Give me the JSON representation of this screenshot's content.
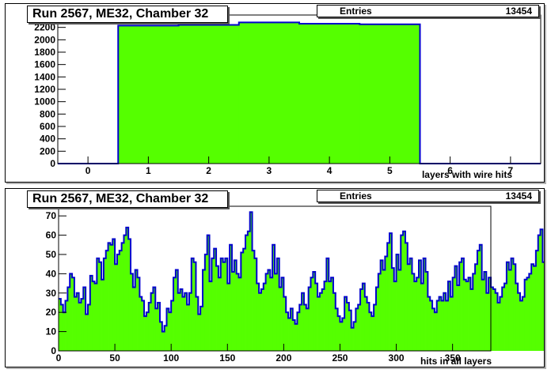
{
  "chart_data": [
    {
      "type": "bar",
      "title": "Run 2567, ME32, Chamber 32",
      "stats_label": "Entries",
      "stats_value": "13454",
      "xlabel": "layers with wire hits",
      "ylabel": "",
      "xlim": [
        -0.5,
        7.5
      ],
      "ylim": [
        0,
        2400
      ],
      "xticks": [
        0,
        1,
        2,
        3,
        4,
        5,
        6,
        7
      ],
      "yticks": [
        0,
        200,
        400,
        600,
        800,
        1000,
        1200,
        1400,
        1600,
        1800,
        2000,
        2200
      ],
      "categories": [
        0,
        1,
        2,
        3,
        4,
        5,
        6,
        7
      ],
      "values": [
        0,
        2230,
        2240,
        2280,
        2260,
        2250,
        0,
        0
      ],
      "fill_color": "#55ff00",
      "line_color": "#0000cc"
    },
    {
      "type": "bar",
      "title": "Run 2567, ME32, Chamber 32",
      "stats_label": "Entries",
      "stats_value": "13454",
      "xlabel": "hits in all layers",
      "ylabel": "",
      "xlim": [
        0,
        384
      ],
      "ylim": [
        0,
        75
      ],
      "xticks": [
        0,
        50,
        100,
        150,
        200,
        250,
        300,
        350
      ],
      "yticks": [
        0,
        10,
        20,
        30,
        40,
        50,
        60,
        70
      ],
      "bin_width": 2,
      "values": [
        27,
        24,
        20,
        26,
        33,
        40,
        38,
        28,
        30,
        25,
        27,
        33,
        19,
        24,
        39,
        36,
        35,
        48,
        46,
        37,
        48,
        52,
        56,
        55,
        58,
        45,
        50,
        52,
        56,
        60,
        64,
        58,
        40,
        33,
        42,
        38,
        28,
        26,
        18,
        20,
        25,
        30,
        33,
        22,
        25,
        15,
        10,
        13,
        22,
        20,
        26,
        38,
        42,
        30,
        32,
        28,
        30,
        24,
        30,
        48,
        46,
        28,
        19,
        23,
        42,
        50,
        60,
        36,
        48,
        53,
        44,
        38,
        48,
        46,
        48,
        35,
        55,
        41,
        47,
        40,
        38,
        51,
        53,
        60,
        62,
        72,
        52,
        48,
        35,
        30,
        32,
        35,
        40,
        42,
        38,
        55,
        40,
        48,
        33,
        38,
        28,
        20,
        17,
        22,
        16,
        14,
        20,
        24,
        30,
        24,
        22,
        33,
        38,
        41,
        35,
        28,
        30,
        32,
        36,
        48,
        36,
        38,
        30,
        22,
        18,
        15,
        17,
        28,
        25,
        21,
        12,
        15,
        22,
        24,
        32,
        35,
        28,
        25,
        20,
        18,
        24,
        33,
        40,
        47,
        42,
        49,
        56,
        61,
        43,
        36,
        50,
        42,
        60,
        62,
        56,
        45,
        48,
        40,
        36,
        38,
        47,
        35,
        48,
        41,
        28,
        26,
        22,
        20,
        26,
        28,
        26,
        30,
        26,
        36,
        28,
        38,
        44,
        34,
        46,
        48,
        37,
        36,
        38,
        32,
        40,
        45,
        52,
        55,
        37,
        41,
        30,
        38,
        33,
        32,
        30,
        25,
        28,
        33,
        35,
        46,
        42,
        48,
        45,
        35,
        30,
        26,
        28,
        37,
        38,
        40,
        45,
        44,
        52,
        60,
        63,
        46,
        40,
        50,
        47,
        32,
        28,
        23,
        20,
        28,
        38,
        37,
        33,
        25,
        35,
        42,
        44,
        33,
        35,
        27,
        20,
        18,
        15,
        17,
        20,
        28,
        36,
        30,
        37,
        40,
        38,
        46,
        44,
        50,
        58,
        62,
        53,
        51,
        47,
        42,
        45,
        35,
        31,
        40,
        45,
        37,
        28,
        24,
        18,
        25,
        30,
        32,
        40,
        38,
        36,
        30,
        26,
        20,
        18,
        23,
        28,
        36,
        40,
        38,
        33,
        35,
        40,
        47,
        50,
        52,
        57,
        61,
        55,
        48,
        45,
        53,
        56,
        50,
        40,
        30,
        34,
        41,
        47,
        51,
        58,
        67,
        50,
        48,
        38,
        30,
        26,
        23,
        28,
        20,
        15,
        17,
        24,
        30,
        36,
        30,
        35,
        26,
        24,
        28,
        30,
        22,
        28,
        33,
        31,
        36,
        28,
        21,
        25,
        27,
        35,
        33,
        36,
        24,
        28,
        30,
        29,
        37,
        44,
        52,
        48,
        55,
        57,
        50,
        45,
        42,
        46,
        52,
        60,
        68,
        61,
        56,
        60,
        44,
        40,
        37,
        24,
        18,
        12,
        10
      ],
      "fill_color": "#55ff00",
      "line_color": "#0000cc"
    }
  ]
}
